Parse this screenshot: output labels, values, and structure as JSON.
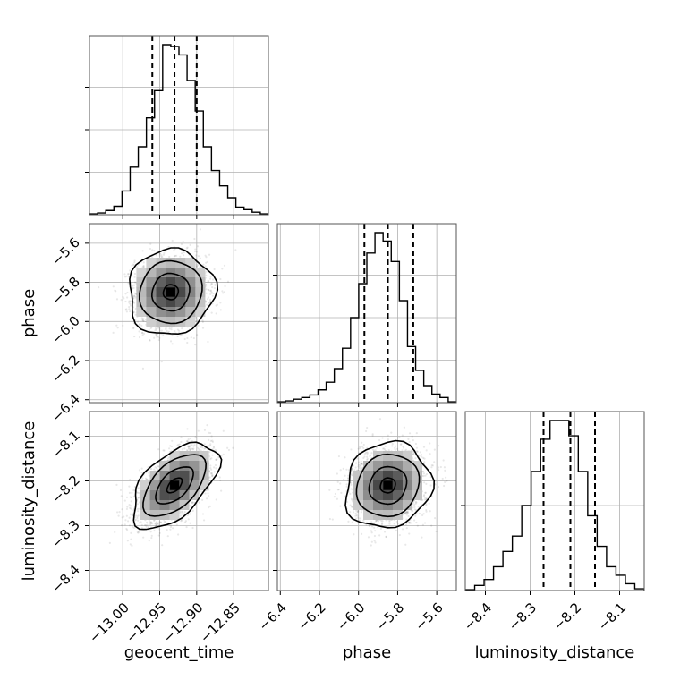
{
  "chart_data": {
    "type": "corner",
    "parameters": [
      "geocent_time",
      "phase",
      "luminosity_distance"
    ],
    "ranges": {
      "geocent_time": [
        -13.045,
        -12.803
      ],
      "phase": [
        -6.415,
        -5.5
      ],
      "luminosity_distance": [
        -8.445,
        -8.045
      ]
    },
    "ticks": {
      "geocent_time": [
        "−13.00",
        "−12.95",
        "−12.90",
        "−12.85"
      ],
      "phase": [
        "−6.4",
        "−6.2",
        "−6.0",
        "−5.8",
        "−5.6"
      ],
      "luminosity_distance": [
        "−8.4",
        "−8.3",
        "−8.2",
        "−8.1"
      ]
    },
    "tick_values": {
      "geocent_time": [
        -13.0,
        -12.95,
        -12.9,
        -12.85
      ],
      "phase": [
        -6.4,
        -6.2,
        -6.0,
        -5.8,
        -5.6
      ],
      "luminosity_distance": [
        -8.4,
        -8.3,
        -8.2,
        -8.1
      ]
    },
    "diag_y_ticks": [
      0.25,
      0.5,
      0.75
    ],
    "quantiles": {
      "geocent_time": [
        -12.96,
        -12.93,
        -12.9
      ],
      "phase": [
        -5.97,
        -5.85,
        -5.72
      ],
      "luminosity_distance": [
        -8.27,
        -8.21,
        -8.155
      ]
    },
    "histograms": {
      "geocent_time": [
        0.005,
        0.01,
        0.025,
        0.05,
        0.14,
        0.28,
        0.4,
        0.57,
        0.73,
        1.0,
        0.99,
        0.94,
        0.79,
        0.61,
        0.4,
        0.26,
        0.17,
        0.1,
        0.045,
        0.03,
        0.015,
        0.005
      ],
      "phase": [
        0.005,
        0.01,
        0.02,
        0.03,
        0.045,
        0.075,
        0.12,
        0.2,
        0.32,
        0.5,
        0.7,
        0.88,
        1.0,
        0.95,
        0.83,
        0.6,
        0.33,
        0.19,
        0.1,
        0.05,
        0.03,
        0.005
      ],
      "luminosity_distance": [
        0.005,
        0.03,
        0.065,
        0.14,
        0.23,
        0.32,
        0.5,
        0.7,
        0.89,
        1.0,
        1.0,
        0.91,
        0.7,
        0.44,
        0.26,
        0.14,
        0.09,
        0.04,
        0.01
      ]
    },
    "peaks": {
      "geocent_time|phase": [
        -12.935,
        -5.85
      ],
      "geocent_time|luminosity_distance": [
        -12.93,
        -8.21
      ],
      "phase|luminosity_distance": [
        -5.85,
        -8.21
      ]
    },
    "grid": true
  }
}
